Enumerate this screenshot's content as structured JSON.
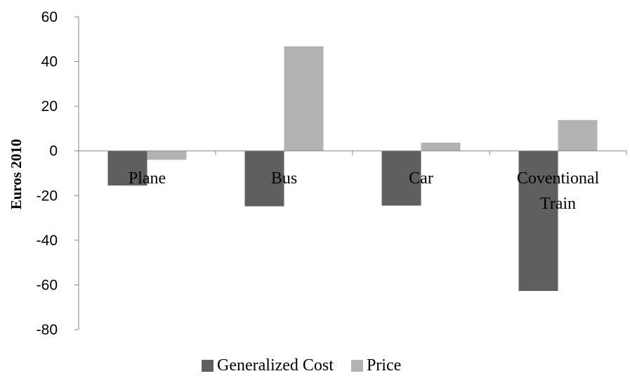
{
  "chart_data": {
    "type": "bar",
    "title": "",
    "xlabel": "",
    "ylabel": "Euros 2010",
    "ylim": [
      -80,
      60
    ],
    "yticks": [
      60,
      40,
      20,
      0,
      -20,
      -40,
      -60,
      -80
    ],
    "categories": [
      "Plane",
      "Bus",
      "Car",
      "Coventional Train"
    ],
    "series": [
      {
        "name": "Generalized Cost",
        "color": "#5f5f5f",
        "values": [
          -15.5,
          -24.8,
          -24.5,
          -62.7
        ]
      },
      {
        "name": "Price",
        "color": "#b3b3b3",
        "values": [
          -4,
          46.8,
          3.7,
          13.8
        ]
      }
    ],
    "legend": "bottom",
    "grid": false
  }
}
